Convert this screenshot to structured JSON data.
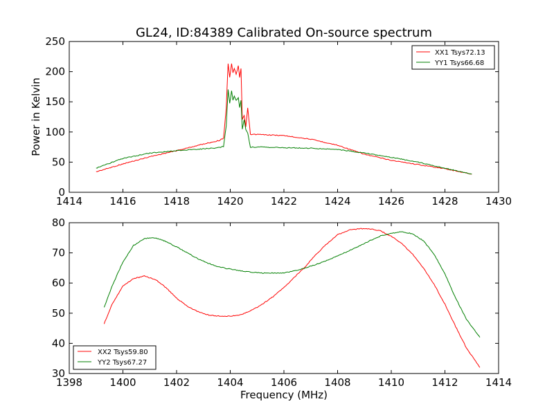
{
  "chart_data": [
    {
      "type": "line",
      "title": "GL24, ID:84389 Calibrated On-source spectrum",
      "xlabel": "",
      "ylabel": "Power in Kelvin",
      "xlim": [
        1414,
        1430
      ],
      "ylim": [
        0,
        250
      ],
      "xticks": [
        "1414",
        "1416",
        "1418",
        "1420",
        "1422",
        "1424",
        "1426",
        "1428",
        "1430"
      ],
      "yticks": [
        "0",
        "50",
        "100",
        "150",
        "200",
        "250"
      ],
      "legend_position": "top-right",
      "grid": false,
      "series": [
        {
          "name": "XX1 Tsys72.13",
          "color": "#ff0000",
          "x": [
            1415.0,
            1416.0,
            1417.0,
            1418.0,
            1419.0,
            1419.6,
            1419.75,
            1419.85,
            1419.92,
            1419.98,
            1420.05,
            1420.1,
            1420.15,
            1420.22,
            1420.3,
            1420.35,
            1420.4,
            1420.45,
            1420.52,
            1420.58,
            1420.65,
            1420.75,
            1421.0,
            1422.0,
            1423.0,
            1424.0,
            1425.0,
            1426.0,
            1427.0,
            1428.0,
            1429.0
          ],
          "y": [
            34,
            47,
            59,
            69,
            80,
            86,
            90,
            140,
            213,
            190,
            214,
            198,
            205,
            195,
            210,
            190,
            205,
            120,
            128,
            108,
            140,
            96,
            96,
            94,
            88,
            78,
            63,
            53,
            46,
            39,
            30
          ]
        },
        {
          "name": "YY1 Tsys66.68",
          "color": "#007f00",
          "x": [
            1415.0,
            1416.0,
            1417.0,
            1418.0,
            1419.0,
            1419.6,
            1419.75,
            1419.85,
            1419.92,
            1419.98,
            1420.05,
            1420.1,
            1420.15,
            1420.22,
            1420.3,
            1420.35,
            1420.4,
            1420.45,
            1420.52,
            1420.58,
            1420.65,
            1420.75,
            1421.0,
            1422.0,
            1423.0,
            1424.0,
            1425.0,
            1426.0,
            1427.0,
            1428.0,
            1429.0
          ],
          "y": [
            40,
            56,
            65,
            69,
            72,
            74,
            76,
            110,
            170,
            148,
            168,
            153,
            160,
            152,
            157,
            140,
            153,
            105,
            120,
            104,
            98,
            75,
            75,
            74,
            73,
            71,
            65,
            58,
            50,
            40,
            30
          ]
        }
      ]
    },
    {
      "type": "line",
      "title": "",
      "xlabel": "Frequency (MHz)",
      "ylabel": "",
      "xlim": [
        1398,
        1414
      ],
      "ylim": [
        30,
        80
      ],
      "xticks": [
        "1398",
        "1400",
        "1402",
        "1404",
        "1406",
        "1408",
        "1410",
        "1412",
        "1414"
      ],
      "yticks": [
        "30",
        "40",
        "50",
        "60",
        "70",
        "80"
      ],
      "legend_position": "bottom-left",
      "grid": false,
      "series": [
        {
          "name": "XX2 Tsys59.80",
          "color": "#ff0000",
          "x": [
            1399.3,
            1399.6,
            1400.0,
            1400.4,
            1400.8,
            1401.2,
            1401.6,
            1402.0,
            1402.4,
            1402.8,
            1403.2,
            1403.6,
            1404.0,
            1404.4,
            1404.8,
            1405.2,
            1405.6,
            1406.0,
            1406.4,
            1406.8,
            1407.2,
            1407.6,
            1408.0,
            1408.4,
            1408.8,
            1409.2,
            1409.6,
            1410.0,
            1410.4,
            1410.8,
            1411.2,
            1411.6,
            1412.0,
            1412.4,
            1412.8,
            1413.3
          ],
          "y": [
            46.5,
            53,
            59,
            61.5,
            62.3,
            61.2,
            58.5,
            55,
            52.3,
            50.5,
            49.4,
            49.0,
            49.0,
            49.5,
            51,
            53,
            55.5,
            58.5,
            62,
            65.5,
            69.5,
            73,
            76,
            77.5,
            78,
            78,
            77.3,
            75.5,
            73,
            69.5,
            65,
            59.5,
            53,
            45.5,
            38.5,
            32
          ]
        },
        {
          "name": "YY2 Tsys67.27",
          "color": "#007f00",
          "x": [
            1399.3,
            1399.6,
            1400.0,
            1400.4,
            1400.8,
            1401.2,
            1401.6,
            1402.0,
            1402.4,
            1402.8,
            1403.2,
            1403.6,
            1404.0,
            1404.4,
            1404.8,
            1405.2,
            1405.6,
            1406.0,
            1406.4,
            1406.8,
            1407.2,
            1407.6,
            1408.0,
            1408.4,
            1408.8,
            1409.2,
            1409.6,
            1410.0,
            1410.4,
            1410.8,
            1411.2,
            1411.6,
            1412.0,
            1412.4,
            1412.8,
            1413.3
          ],
          "y": [
            52,
            59,
            67,
            72.5,
            74.8,
            75,
            73.8,
            72,
            70,
            68,
            66.5,
            65.3,
            64.6,
            64,
            63.6,
            63.3,
            63.3,
            63.4,
            64,
            65,
            66.2,
            67.5,
            69,
            70.6,
            72.2,
            74,
            75.6,
            76.5,
            77,
            76.3,
            74,
            69.5,
            63,
            55,
            48,
            42
          ]
        }
      ]
    }
  ]
}
